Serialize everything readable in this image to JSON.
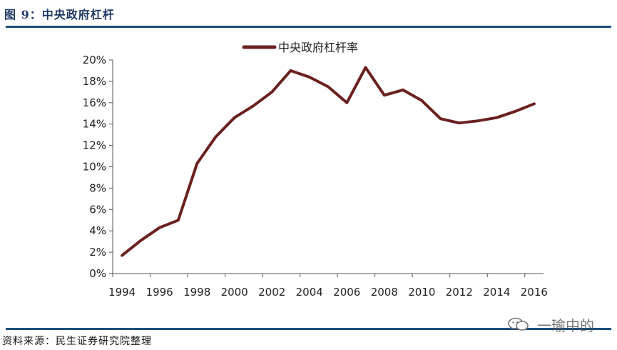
{
  "figure": {
    "title": "图 9：中央政府杠杆",
    "source": "资料来源：民生证券研究院整理",
    "watermark": "一瑜中的"
  },
  "colors": {
    "series": "#6b2020",
    "rule": "#1f4e79",
    "title": "#1f3864"
  },
  "chart_data": {
    "type": "line",
    "title": "",
    "xlabel": "",
    "ylabel": "",
    "legend_position": "top-center",
    "grid": false,
    "ylim": [
      0,
      20
    ],
    "xlim": [
      1994,
      2016
    ],
    "x_ticks": [
      "1994",
      "1996",
      "1998",
      "2000",
      "2002",
      "2004",
      "2006",
      "2008",
      "2010",
      "2012",
      "2014",
      "2016"
    ],
    "y_ticks": [
      "0%",
      "2%",
      "4%",
      "6%",
      "8%",
      "10%",
      "12%",
      "14%",
      "16%",
      "18%",
      "20%"
    ],
    "series": [
      {
        "name": "中央政府杠杆率",
        "x": [
          1994,
          1995,
          1996,
          1997,
          1998,
          1999,
          2000,
          2001,
          2002,
          2003,
          2004,
          2005,
          2006,
          2007,
          2008,
          2009,
          2010,
          2011,
          2012,
          2013,
          2014,
          2015,
          2016
        ],
        "values": [
          1.7,
          3.1,
          4.3,
          5.0,
          10.3,
          12.8,
          14.6,
          15.7,
          17.0,
          19.0,
          18.4,
          17.5,
          16.0,
          19.3,
          16.7,
          17.2,
          16.2,
          14.5,
          14.1,
          14.3,
          14.6,
          15.2,
          15.9
        ]
      }
    ]
  }
}
